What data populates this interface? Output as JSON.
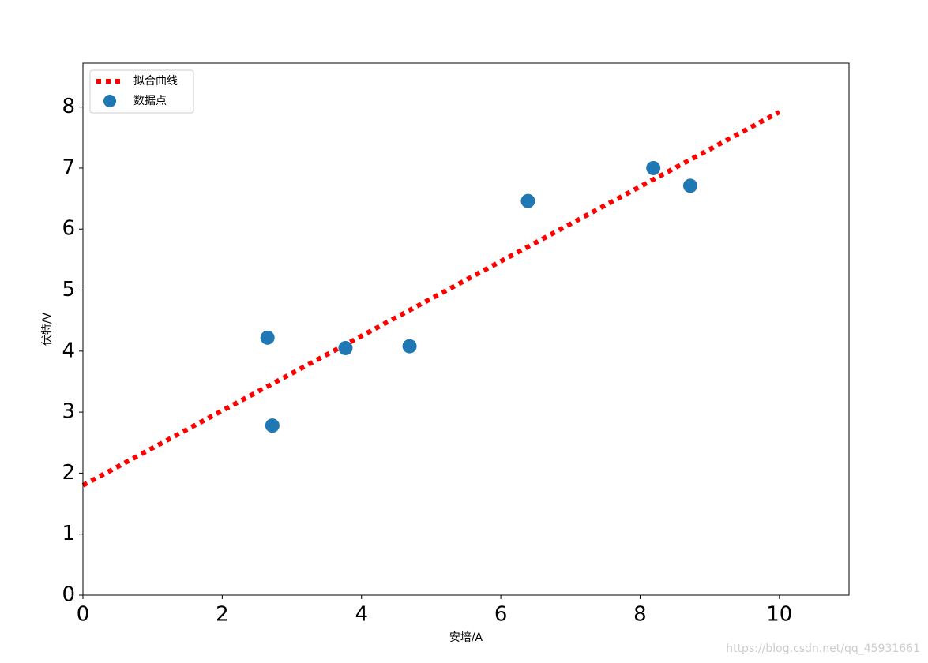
{
  "chart_data": {
    "type": "scatter",
    "x_label": "安培/A",
    "y_label": "伏特/V",
    "xlim": [
      0,
      11
    ],
    "ylim": [
      0,
      8.72
    ],
    "xticks": [
      0,
      2,
      4,
      6,
      8,
      10
    ],
    "yticks": [
      0,
      1,
      2,
      3,
      4,
      5,
      6,
      7,
      8
    ],
    "legend": "upper left",
    "series": [
      {
        "name": "拟合曲线",
        "type": "line",
        "color": "#ff0000",
        "x": [
          0,
          10
        ],
        "values": [
          1.8,
          7.92
        ]
      },
      {
        "name": "数据点",
        "type": "scatter",
        "color": "#1f77b4",
        "x": [
          2.65,
          2.72,
          3.77,
          4.69,
          6.39,
          8.19,
          8.72
        ],
        "values": [
          4.22,
          2.78,
          4.05,
          4.08,
          6.46,
          7.0,
          6.71
        ]
      }
    ],
    "watermark": "https://blog.csdn.net/qq_45931661"
  }
}
